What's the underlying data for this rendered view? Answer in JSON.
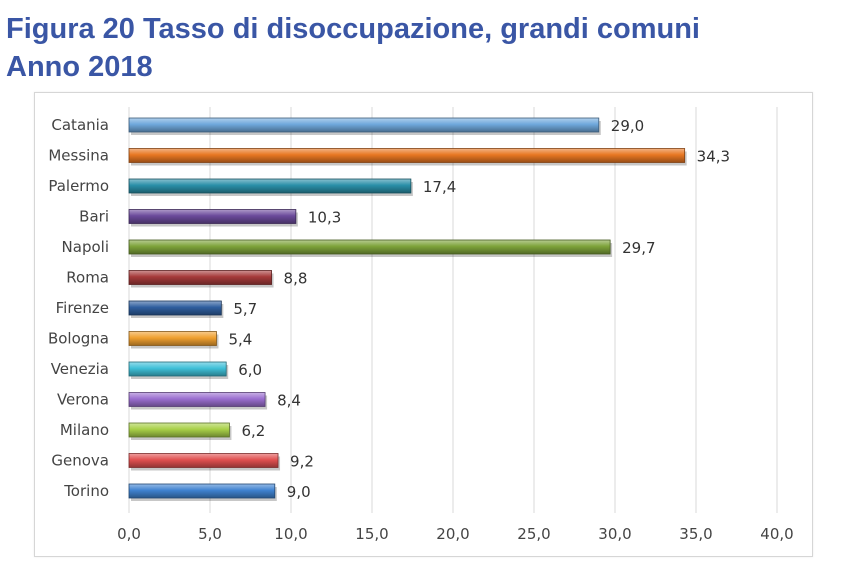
{
  "page": {
    "title_line1": "Figura 20 Tasso di disoccupazione, grandi comuni",
    "title_line2": "Anno 2018"
  },
  "chart_data": {
    "type": "bar",
    "orientation": "horizontal",
    "title": "Figura 20 Tasso di disoccupazione, grandi comuni Anno 2018",
    "xlabel": "",
    "ylabel": "",
    "xlim": [
      0,
      40
    ],
    "xticks": [
      "0,0",
      "5,0",
      "10,0",
      "15,0",
      "20,0",
      "25,0",
      "30,0",
      "35,0",
      "40,0"
    ],
    "grid": true,
    "categories": [
      "Catania",
      "Messina",
      "Palermo",
      "Bari",
      "Napoli",
      "Roma",
      "Firenze",
      "Bologna",
      "Venezia",
      "Verona",
      "Milano",
      "Genova",
      "Torino"
    ],
    "values": [
      29.0,
      34.3,
      17.4,
      10.3,
      29.7,
      8.8,
      5.7,
      5.4,
      6.0,
      8.4,
      6.2,
      9.2,
      9.0
    ],
    "value_labels": [
      "29,0",
      "34,3",
      "17,4",
      "10,3",
      "29,7",
      "8,8",
      "5,7",
      "5,4",
      "6,0",
      "8,4",
      "6,2",
      "9,2",
      "9,0"
    ],
    "colors": [
      "#6fa8dc",
      "#e87722",
      "#2a8fa8",
      "#6b4a9b",
      "#7ea33a",
      "#a53a3a",
      "#2e5e9e",
      "#f0a030",
      "#3fc0d8",
      "#9b6fd0",
      "#a8d048",
      "#e05050",
      "#3f82d0"
    ]
  }
}
